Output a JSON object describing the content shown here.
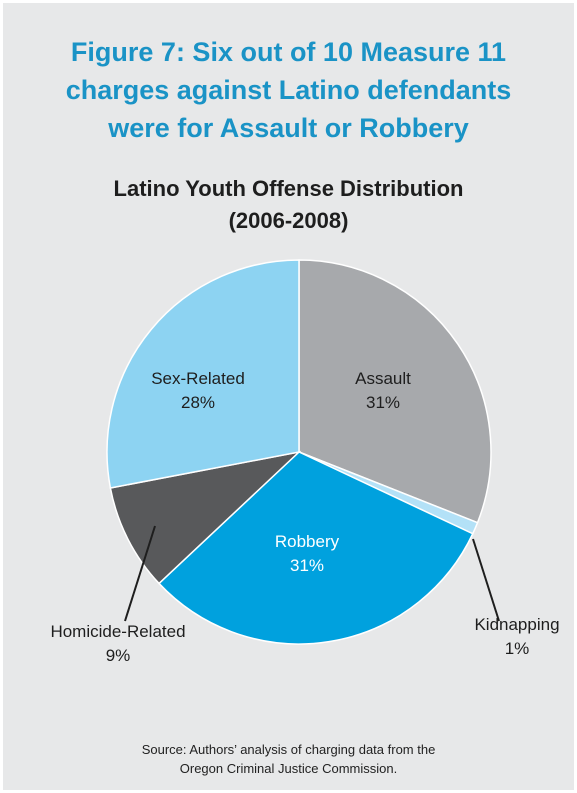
{
  "figure_title_lines": [
    "Figure 7: Six out of 10 Measure 11",
    "charges against Latino defendants",
    "were for Assault or Robbery"
  ],
  "chart_title_lines": [
    "Latino Youth Offense Distribution",
    "(2006-2008)"
  ],
  "source_lines": [
    "Source: Authors’ analysis of charging data from the",
    "Oregon Criminal Justice Commission."
  ],
  "chart_data": {
    "type": "pie",
    "title": "Latino Youth Offense Distribution (2006-2008)",
    "slices": [
      {
        "label": "Assault",
        "pct_label": "31%",
        "value": 31,
        "color": "#a7a9ac"
      },
      {
        "label": "Kidnapping",
        "pct_label": "1%",
        "value": 1,
        "color": "#b3e1f7"
      },
      {
        "label": "Robbery",
        "pct_label": "31%",
        "value": 31,
        "color": "#00a1de"
      },
      {
        "label": "Homicide-Related",
        "pct_label": "9%",
        "value": 9,
        "color": "#58595b"
      },
      {
        "label": "Sex-Related",
        "pct_label": "28%",
        "value": 28,
        "color": "#8dd3f2"
      }
    ]
  },
  "colors": {
    "title": "#1a93c6",
    "background": "#e7e8e9"
  }
}
